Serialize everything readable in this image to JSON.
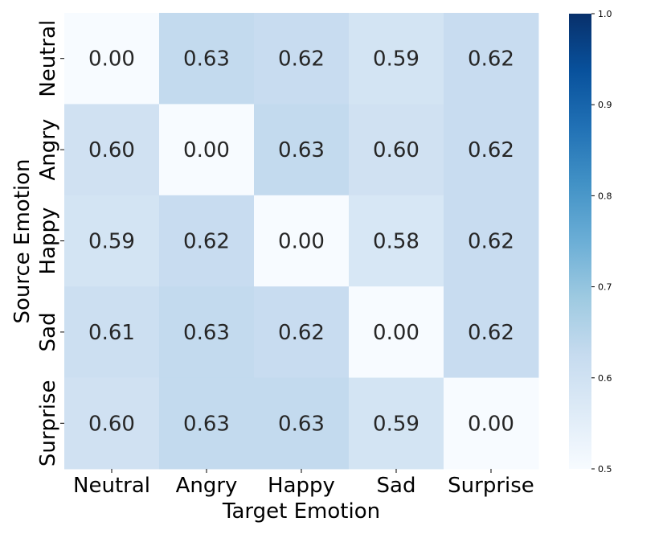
{
  "chart_data": {
    "type": "heatmap",
    "xlabel": "Target Emotion",
    "ylabel": "Source Emotion",
    "x_categories": [
      "Neutral",
      "Angry",
      "Happy",
      "Sad",
      "Surprise"
    ],
    "y_categories": [
      "Neutral",
      "Angry",
      "Happy",
      "Sad",
      "Surprise"
    ],
    "values": [
      [
        0.0,
        0.63,
        0.62,
        0.59,
        0.62
      ],
      [
        0.6,
        0.0,
        0.63,
        0.6,
        0.62
      ],
      [
        0.59,
        0.62,
        0.0,
        0.58,
        0.62
      ],
      [
        0.61,
        0.63,
        0.62,
        0.0,
        0.62
      ],
      [
        0.6,
        0.63,
        0.63,
        0.59,
        0.0
      ]
    ],
    "value_labels": [
      [
        "0.00",
        "0.63",
        "0.62",
        "0.59",
        "0.62"
      ],
      [
        "0.60",
        "0.00",
        "0.63",
        "0.60",
        "0.62"
      ],
      [
        "0.59",
        "0.62",
        "0.00",
        "0.58",
        "0.62"
      ],
      [
        "0.61",
        "0.63",
        "0.62",
        "0.00",
        "0.62"
      ],
      [
        "0.60",
        "0.63",
        "0.63",
        "0.59",
        "0.00"
      ]
    ],
    "colormap": "Blues",
    "color_range": [
      0.5,
      1.0
    ],
    "colorbar_ticks": [
      "0.5",
      "0.6",
      "0.7",
      "0.8",
      "0.9",
      "1.0"
    ],
    "colorbar_tick_values": [
      0.5,
      0.6,
      0.7,
      0.8,
      0.9,
      1.0
    ],
    "colors": {
      "low": "#f7fbff",
      "high": "#08306b",
      "annotation_text": "#262626"
    }
  }
}
